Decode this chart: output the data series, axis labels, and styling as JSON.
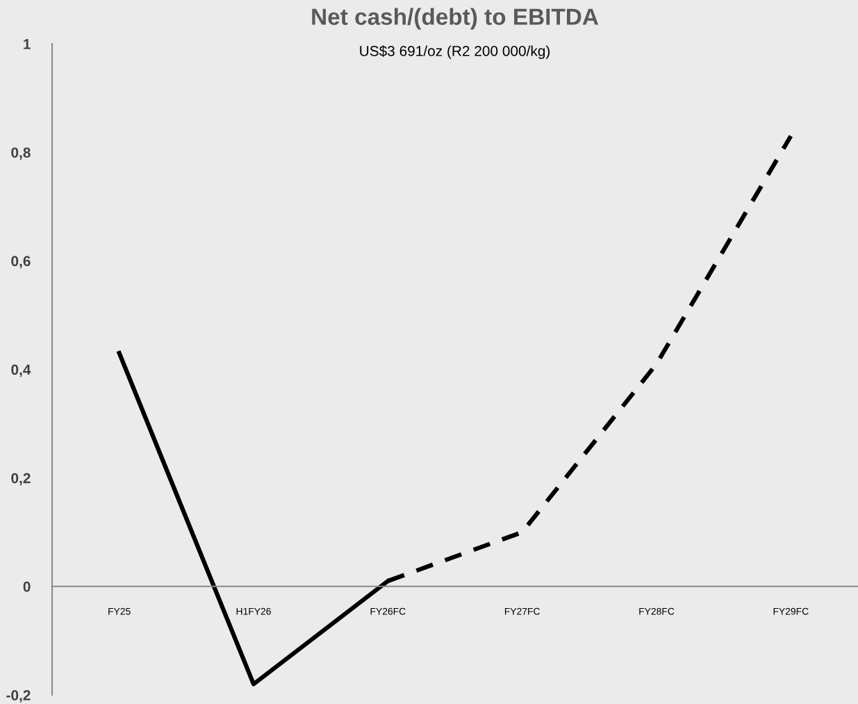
{
  "chart_data": {
    "type": "line",
    "title": "Net cash/(debt) to EBITDA",
    "subtitle": "US$3 691/oz (R2 200 000/kg)",
    "categories": [
      "FY25",
      "H1FY26",
      "FY26FC",
      "FY27FC",
      "FY28FC",
      "FY29FC"
    ],
    "series": [
      {
        "color": "#000000",
        "line_style": "solid",
        "values": [
          0.43,
          -0.18,
          0.01,
          null,
          null,
          null
        ]
      },
      {
        "color": "#000000",
        "line_style": "dashed",
        "values": [
          null,
          null,
          0.01,
          0.1,
          0.41,
          0.83
        ]
      }
    ],
    "ylim": [
      -0.2,
      1
    ],
    "yticks": [
      {
        "value": -0.2,
        "label": "-0,2"
      },
      0,
      {
        "value": 0.2,
        "label": "0,2"
      },
      {
        "value": 0.4,
        "label": "0,4"
      },
      {
        "value": 0.6,
        "label": "0,6"
      },
      {
        "value": 0.8,
        "label": "0,8"
      },
      1
    ],
    "grid": false,
    "legend": false,
    "marker": "none"
  }
}
